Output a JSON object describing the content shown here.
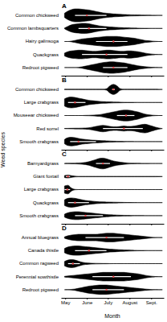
{
  "chart_data": [
    {
      "type": "violin",
      "title": "A",
      "ylabel": "Weed species",
      "color": "#000000",
      "tick_labels": "y",
      "categories": [
        "Common chickweed",
        "Common lambsquarters",
        "Hairy galinsoga",
        "Quackgrass",
        "Redroot pigweed"
      ],
      "x": [
        120,
        125,
        130,
        135,
        140,
        145,
        150,
        155,
        160,
        165,
        170,
        175,
        180,
        185,
        190,
        195,
        200,
        205,
        210,
        215,
        220,
        225,
        230,
        235,
        240,
        245,
        250,
        255,
        260
      ],
      "xlim": [
        115,
        262
      ],
      "xticks": [
        {
          "value": 121,
          "label": "May"
        },
        {
          "value": 152,
          "label": "June"
        },
        {
          "value": 182,
          "label": "July"
        },
        {
          "value": 213,
          "label": "August"
        },
        {
          "value": 244,
          "label": "Sept."
        }
      ],
      "values": [
        [
          0.3,
          0.6,
          0.8,
          0.9,
          0.9,
          0.85,
          0.8,
          0.75,
          0.65,
          0.55,
          0.45,
          0.35,
          0.3,
          0.25,
          0.2,
          0.18,
          0.15,
          0.12,
          0.1,
          0.08,
          0.07,
          0.06,
          0.05,
          0.04,
          0.03,
          0.02,
          0.02,
          0,
          0
        ],
        [
          0.05,
          0.3,
          0.5,
          0.6,
          0.65,
          0.7,
          0.7,
          0.65,
          0.55,
          0.45,
          0.35,
          0.3,
          0.25,
          0.2,
          0.18,
          0.15,
          0.12,
          0.1,
          0.08,
          0.06,
          0.05,
          0.04,
          0.03,
          0.02,
          0.01,
          0,
          0,
          0,
          0
        ],
        [
          0,
          0,
          0.05,
          0.15,
          0.25,
          0.35,
          0.4,
          0.45,
          0.5,
          0.55,
          0.6,
          0.65,
          0.7,
          0.7,
          0.7,
          0.7,
          0.65,
          0.6,
          0.55,
          0.5,
          0.45,
          0.35,
          0.25,
          0.15,
          0.1,
          0.05,
          0.02,
          0,
          0
        ],
        [
          0.2,
          0.4,
          0.5,
          0.55,
          0.6,
          0.6,
          0.55,
          0.5,
          0.45,
          0.45,
          0.5,
          0.55,
          0.6,
          0.6,
          0.55,
          0.5,
          0.45,
          0.45,
          0.5,
          0.5,
          0.45,
          0.4,
          0.3,
          0.2,
          0.12,
          0.06,
          0.02,
          0,
          0
        ],
        [
          0,
          0,
          0,
          0,
          0.03,
          0.1,
          0.2,
          0.3,
          0.4,
          0.5,
          0.6,
          0.7,
          0.75,
          0.8,
          0.8,
          0.75,
          0.7,
          0.65,
          0.55,
          0.45,
          0.35,
          0.25,
          0.18,
          0.12,
          0.08,
          0.04,
          0.02,
          0,
          0
        ]
      ],
      "boxes": [
        [
          135,
          152,
          180
        ],
        [
          140,
          155,
          180
        ],
        [
          165,
          190,
          210
        ],
        [
          145,
          180,
          210
        ],
        [
          175,
          190,
          210
        ]
      ]
    },
    {
      "type": "violin",
      "title": "B",
      "color": "#000000",
      "tick_labels": "y",
      "categories": [
        "Common chickweed",
        "Large crabgrass",
        "Mouseear chickweed",
        "Red sorrel",
        "Smooth crabgrass"
      ],
      "x": [
        120,
        125,
        130,
        135,
        140,
        145,
        150,
        155,
        160,
        165,
        170,
        175,
        180,
        185,
        190,
        195,
        200,
        205,
        210,
        215,
        220,
        225,
        230,
        235,
        240,
        245,
        250,
        255,
        260
      ],
      "xlim": [
        115,
        262
      ],
      "xticks": [
        {
          "value": 121,
          "label": "May"
        },
        {
          "value": 152,
          "label": "June"
        },
        {
          "value": 182,
          "label": "July"
        },
        {
          "value": 213,
          "label": "August"
        },
        {
          "value": 244,
          "label": "Sept."
        }
      ],
      "values": [
        [
          0.03,
          0.03,
          0.03,
          0.03,
          0.03,
          0.03,
          0.03,
          0.03,
          0.03,
          0.03,
          0.03,
          0.03,
          0.1,
          0.5,
          0.7,
          0.5,
          0.1,
          0.03,
          0.03,
          0.03,
          0.03,
          0.03,
          0.03,
          0.03,
          0.03,
          0.03,
          0.03,
          0.02,
          0
        ],
        [
          0.5,
          0.7,
          0.75,
          0.7,
          0.6,
          0.5,
          0.4,
          0.3,
          0.25,
          0.2,
          0.15,
          0.12,
          0.1,
          0.08,
          0.06,
          0.05,
          0.04,
          0.03,
          0.02,
          0.02,
          0.01,
          0,
          0,
          0,
          0,
          0,
          0,
          0,
          0
        ],
        [
          0,
          0,
          0,
          0,
          0,
          0,
          0.02,
          0.03,
          0.05,
          0.08,
          0.12,
          0.2,
          0.3,
          0.4,
          0.5,
          0.6,
          0.7,
          0.75,
          0.75,
          0.7,
          0.6,
          0.5,
          0.35,
          0.2,
          0.1,
          0.05,
          0.02,
          0,
          0
        ],
        [
          0.02,
          0.03,
          0.04,
          0.05,
          0.05,
          0.06,
          0.08,
          0.12,
          0.2,
          0.3,
          0.4,
          0.45,
          0.4,
          0.3,
          0.25,
          0.25,
          0.3,
          0.35,
          0.3,
          0.3,
          0.35,
          0.45,
          0.55,
          0.6,
          0.5,
          0.35,
          0.2,
          0.08,
          0
        ],
        [
          0.3,
          0.55,
          0.6,
          0.55,
          0.45,
          0.35,
          0.3,
          0.25,
          0.2,
          0.18,
          0.15,
          0.12,
          0.1,
          0.08,
          0.06,
          0.05,
          0.04,
          0.03,
          0.02,
          0.01,
          0,
          0,
          0,
          0,
          0,
          0,
          0,
          0,
          0
        ]
      ],
      "boxes": [
        [
          188,
          190,
          192
        ],
        [
          125,
          135,
          150
        ],
        [
          195,
          208,
          220
        ],
        [
          175,
          205,
          232
        ],
        [
          128,
          140,
          165
        ]
      ]
    },
    {
      "type": "violin",
      "title": "C",
      "color": "#000000",
      "tick_labels": "y",
      "categories": [
        "Barnyardgrass",
        "Giant foxtail",
        "Large crabgrass",
        "Quackgrass",
        "Smooth crabgrass"
      ],
      "x": [
        120,
        125,
        130,
        135,
        140,
        145,
        150,
        155,
        160,
        165,
        170,
        175,
        180,
        185,
        190,
        195,
        200,
        205,
        210,
        215,
        220,
        225,
        230,
        235,
        240,
        245,
        250,
        255,
        260
      ],
      "xlim": [
        115,
        262
      ],
      "xticks": [
        {
          "value": 121,
          "label": "May"
        },
        {
          "value": 152,
          "label": "June"
        },
        {
          "value": 182,
          "label": "July"
        },
        {
          "value": 213,
          "label": "August"
        },
        {
          "value": 244,
          "label": "Sept."
        }
      ],
      "values": [
        [
          0.02,
          0.03,
          0.04,
          0.05,
          0.07,
          0.1,
          0.15,
          0.25,
          0.4,
          0.55,
          0.7,
          0.75,
          0.65,
          0.5,
          0.35,
          0.25,
          0.18,
          0.12,
          0.08,
          0.05,
          0.04,
          0.03,
          0.02,
          0.02,
          0.01,
          0,
          0,
          0,
          0
        ],
        [
          0.15,
          0.2,
          0.12,
          0.05,
          0.03,
          0.03,
          0.03,
          0.03,
          0.03,
          0.03,
          0.03,
          0.03,
          0.03,
          0.03,
          0.03,
          0.03,
          0.03,
          0.03,
          0.03,
          0.03,
          0.03,
          0.03,
          0.03,
          0.03,
          0.03,
          0.03,
          0.03,
          0.02,
          0
        ],
        [
          0.5,
          0.6,
          0.2,
          0.03,
          0,
          0,
          0,
          0,
          0,
          0,
          0,
          0,
          0,
          0,
          0,
          0,
          0,
          0,
          0,
          0,
          0,
          0,
          0,
          0,
          0,
          0,
          0,
          0,
          0
        ],
        [
          0.4,
          0.6,
          0.65,
          0.6,
          0.5,
          0.4,
          0.3,
          0.25,
          0.2,
          0.15,
          0.12,
          0.1,
          0.08,
          0.07,
          0.06,
          0.05,
          0.04,
          0.03,
          0.02,
          0.02,
          0.01,
          0,
          0,
          0,
          0,
          0,
          0,
          0,
          0
        ],
        [
          0.2,
          0.4,
          0.5,
          0.55,
          0.55,
          0.5,
          0.45,
          0.4,
          0.35,
          0.3,
          0.25,
          0.2,
          0.16,
          0.12,
          0.1,
          0.08,
          0.06,
          0.05,
          0.04,
          0.03,
          0.02,
          0.02,
          0.01,
          0,
          0,
          0,
          0,
          0,
          0
        ]
      ],
      "boxes": [
        [
          165,
          175,
          185
        ],
        [
          122,
          125,
          128
        ],
        [
          120,
          124,
          128
        ],
        [
          125,
          135,
          155
        ],
        [
          135,
          150,
          175
        ]
      ]
    },
    {
      "type": "violin",
      "title": "D",
      "xlabel": "Month",
      "color": "#000000",
      "categories": [
        "Annual bluegrass",
        "Canada thistle",
        "Common ragweed",
        "Perennial sowthistle",
        "Redroot pigweed"
      ],
      "x": [
        120,
        125,
        130,
        135,
        140,
        145,
        150,
        155,
        160,
        165,
        170,
        175,
        180,
        185,
        190,
        195,
        200,
        205,
        210,
        215,
        220,
        225,
        230,
        235,
        240,
        245,
        250,
        255,
        260
      ],
      "xlim": [
        115,
        262
      ],
      "xticks": [
        {
          "value": 121,
          "label": "May"
        },
        {
          "value": 152,
          "label": "June"
        },
        {
          "value": 182,
          "label": "July"
        },
        {
          "value": 213,
          "label": "August"
        },
        {
          "value": 244,
          "label": "Sept."
        }
      ],
      "values": [
        [
          0.1,
          0.25,
          0.35,
          0.4,
          0.45,
          0.45,
          0.45,
          0.45,
          0.45,
          0.45,
          0.5,
          0.55,
          0.6,
          0.6,
          0.6,
          0.55,
          0.5,
          0.45,
          0.4,
          0.35,
          0.3,
          0.25,
          0.2,
          0.15,
          0.1,
          0.05,
          0.02,
          0,
          0
        ],
        [
          0.3,
          0.5,
          0.6,
          0.65,
          0.65,
          0.6,
          0.55,
          0.5,
          0.45,
          0.4,
          0.35,
          0.3,
          0.25,
          0.2,
          0.18,
          0.15,
          0.12,
          0.1,
          0.08,
          0.06,
          0.04,
          0.03,
          0.02,
          0.01,
          0,
          0,
          0,
          0,
          0
        ],
        [
          0.3,
          0.5,
          0.55,
          0.5,
          0.35,
          0.2,
          0.12,
          0.08,
          0.05,
          0.04,
          0.03,
          0.02,
          0.02,
          0.01,
          0,
          0,
          0,
          0,
          0,
          0,
          0,
          0,
          0,
          0,
          0,
          0,
          0,
          0,
          0
        ],
        [
          0.05,
          0.1,
          0.15,
          0.2,
          0.25,
          0.3,
          0.35,
          0.4,
          0.45,
          0.5,
          0.55,
          0.6,
          0.6,
          0.6,
          0.6,
          0.6,
          0.6,
          0.6,
          0.55,
          0.5,
          0.45,
          0.4,
          0.3,
          0.2,
          0.12,
          0.06,
          0.02,
          0,
          0
        ],
        [
          0,
          0.02,
          0.05,
          0.1,
          0.2,
          0.3,
          0.4,
          0.5,
          0.55,
          0.6,
          0.65,
          0.65,
          0.65,
          0.6,
          0.55,
          0.5,
          0.45,
          0.4,
          0.35,
          0.3,
          0.25,
          0.2,
          0.15,
          0.1,
          0.06,
          0.03,
          0.01,
          0,
          0
        ]
      ],
      "boxes": [
        [
          150,
          180,
          205
        ],
        [
          135,
          155,
          180
        ],
        [
          125,
          132,
          142
        ],
        [
          160,
          190,
          215
        ],
        [
          160,
          180,
          205
        ]
      ]
    }
  ]
}
